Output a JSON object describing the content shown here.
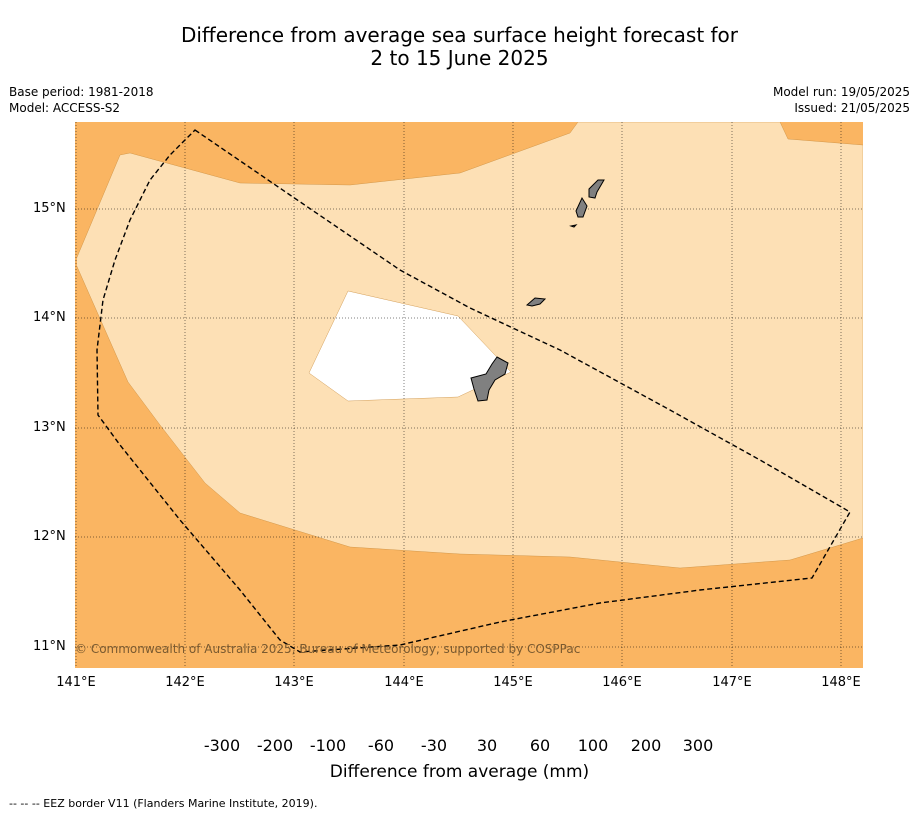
{
  "title_line1": "Difference from average sea surface height forecast for",
  "title_line2": "2 to 15 June 2025",
  "base_period": "Base period: 1981-2018",
  "model": "Model: ACCESS-S2",
  "model_run": "Model run: 19/05/2025",
  "issued": "Issued: 21/05/2025",
  "copyright": "© Commonwealth of Australia 2025, Bureau of Meteorology, supported by COSPPac",
  "lat_labels": [
    "15°N",
    "14°N",
    "13°N",
    "12°N",
    "11°N"
  ],
  "lon_labels": [
    "141°E",
    "142°E",
    "143°E",
    "144°E",
    "145°E",
    "146°E",
    "147°E",
    "148°E"
  ],
  "colorbar": {
    "title": "Difference from average (mm)",
    "labels": [
      "-300",
      "-200",
      "-100",
      "-60",
      "-30",
      "30",
      "60",
      "100",
      "200",
      "300"
    ],
    "colors": [
      "#3b0a5e",
      "#5a2287",
      "#8272b1",
      "#b0a8d3",
      "#dcdaee",
      "#ffffff",
      "#fde0b5",
      "#fab562",
      "#e08414",
      "#b35a06",
      "#7f3b08"
    ]
  },
  "footer": "--  --  -- EEZ border V11 (Flanders Marine Institute, 2019).",
  "colors": {
    "ocean_high": "#fab562",
    "ocean_mid": "#fde0b5",
    "ocean_neutral": "#ffffff",
    "land": "#808080"
  }
}
